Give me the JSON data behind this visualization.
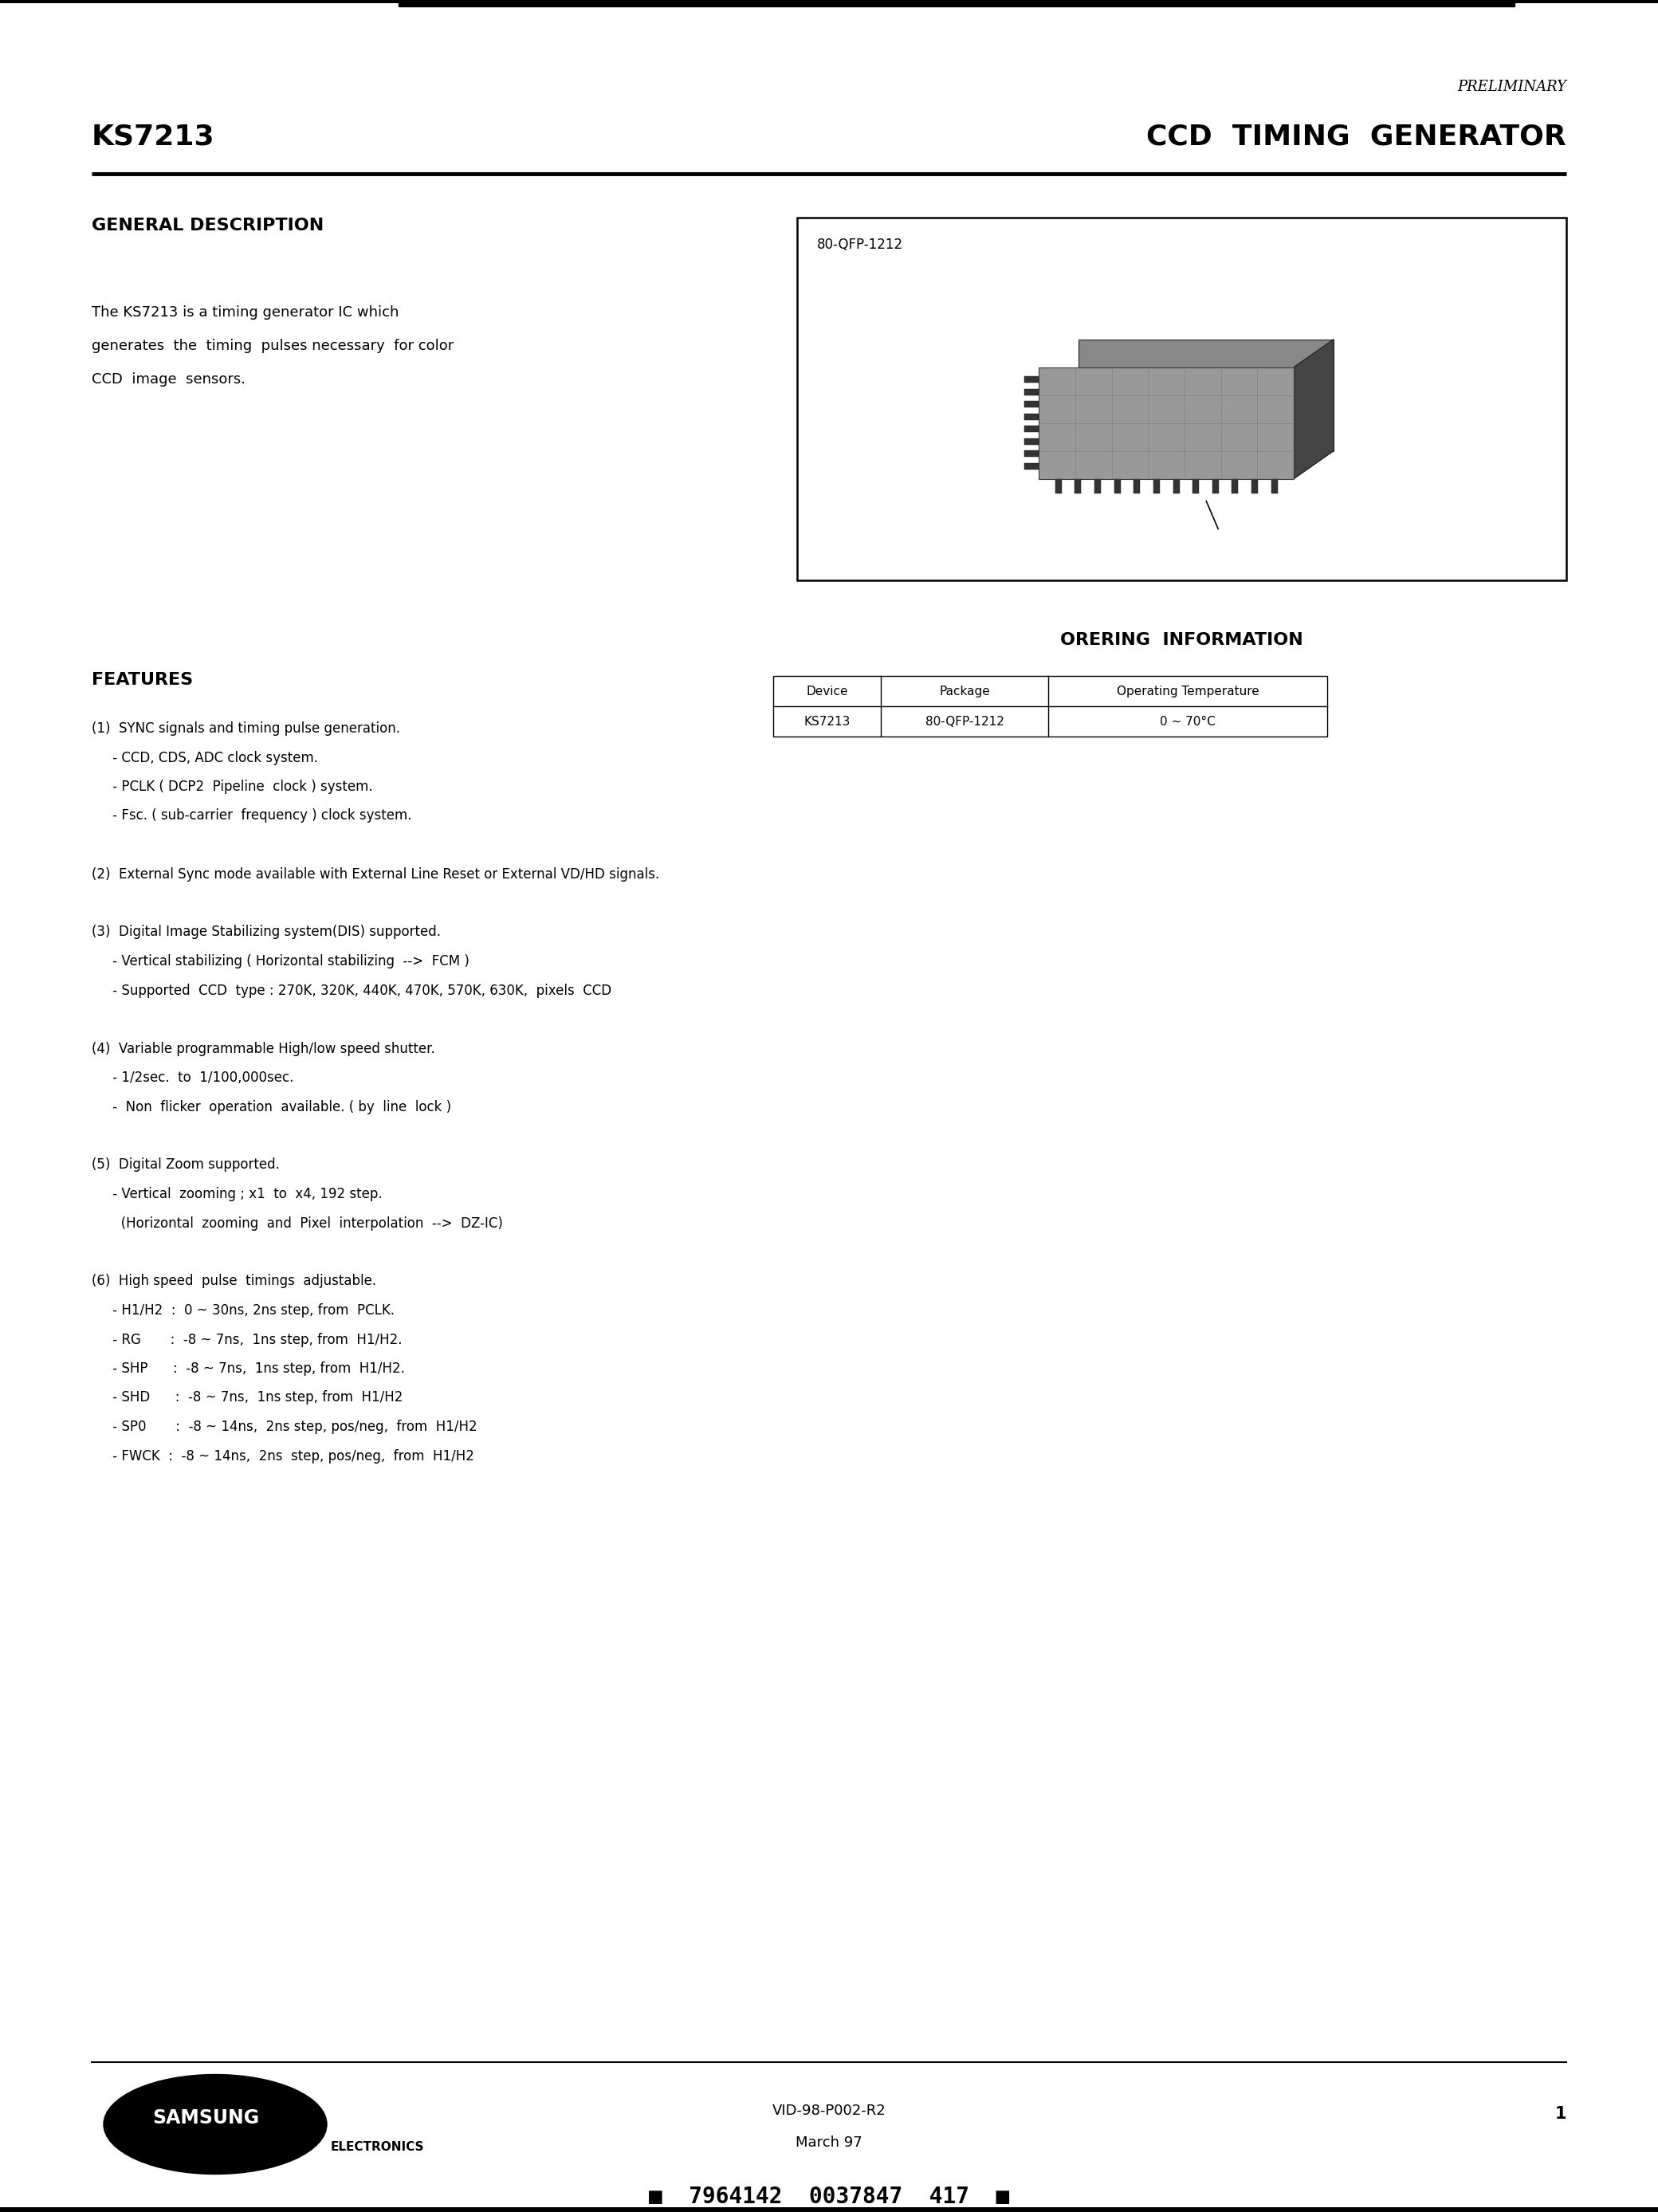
{
  "bg_color": "#ffffff",
  "preliminary_text": "PRELIMINARY",
  "title_left": "KS7213",
  "title_right": "CCD  TIMING  GENERATOR",
  "section1_title": "GENERAL DESCRIPTION",
  "section1_body_lines": [
    "The KS7213 is a timing generator IC which",
    "generates  the  timing  pulses necessary  for color",
    "CCD  image  sensors."
  ],
  "package_label": "80-QFP-1212",
  "ordering_title": "ORERING  INFORMATION",
  "table_headers": [
    "Device",
    "Package",
    "Operating Temperature"
  ],
  "table_row": [
    "KS7213",
    "80-QFP-1212",
    "0 ~ 70°C"
  ],
  "features_title": "FEATURES",
  "features_items": [
    "(1)  SYNC signals and timing pulse generation.",
    "     - CCD, CDS, ADC clock system.",
    "     - PCLK ( DCP2  Pipeline  clock ) system.",
    "     - Fsc. ( sub-carrier  frequency ) clock system.",
    "",
    "(2)  External Sync mode available with External Line Reset or External VD/HD signals.",
    "",
    "(3)  Digital Image Stabilizing system(DIS) supported.",
    "     - Vertical stabilizing ( Horizontal stabilizing  -->  FCM )",
    "     - Supported  CCD  type : 270K, 320K, 440K, 470K, 570K, 630K,  pixels  CCD",
    "",
    "(4)  Variable programmable High/low speed shutter.",
    "     - 1/2sec.  to  1/100,000sec.",
    "     -  Non  flicker  operation  available. ( by  line  lock )",
    "",
    "(5)  Digital Zoom supported.",
    "     - Vertical  zooming ; x1  to  x4, 192 step.",
    "       (Horizontal  zooming  and  Pixel  interpolation  -->  DZ-IC)",
    "",
    "(6)  High speed  pulse  timings  adjustable.",
    "     - H1/H2  :  0 ~ 30ns, 2ns step, from  PCLK.",
    "     - RG       :  -8 ~ 7ns,  1ns step, from  H1/H2.",
    "     - SHP      :  -8 ~ 7ns,  1ns step, from  H1/H2.",
    "     - SHD      :  -8 ~ 7ns,  1ns step, from  H1/H2",
    "     - SP0       :  -8 ~ 14ns,  2ns step, pos/neg,  from  H1/H2",
    "     - FWCK  :  -8 ~ 14ns,  2ns  step, pos/neg,  from  H1/H2"
  ],
  "footer_doc": "VID-98-P002-R2",
  "footer_date": "March 97",
  "footer_page": "1",
  "barcode_text": "■  7964142  0037847  417  ■",
  "samsung_text": "SAMSUNG",
  "electronics_text": "ELECTRONICS"
}
